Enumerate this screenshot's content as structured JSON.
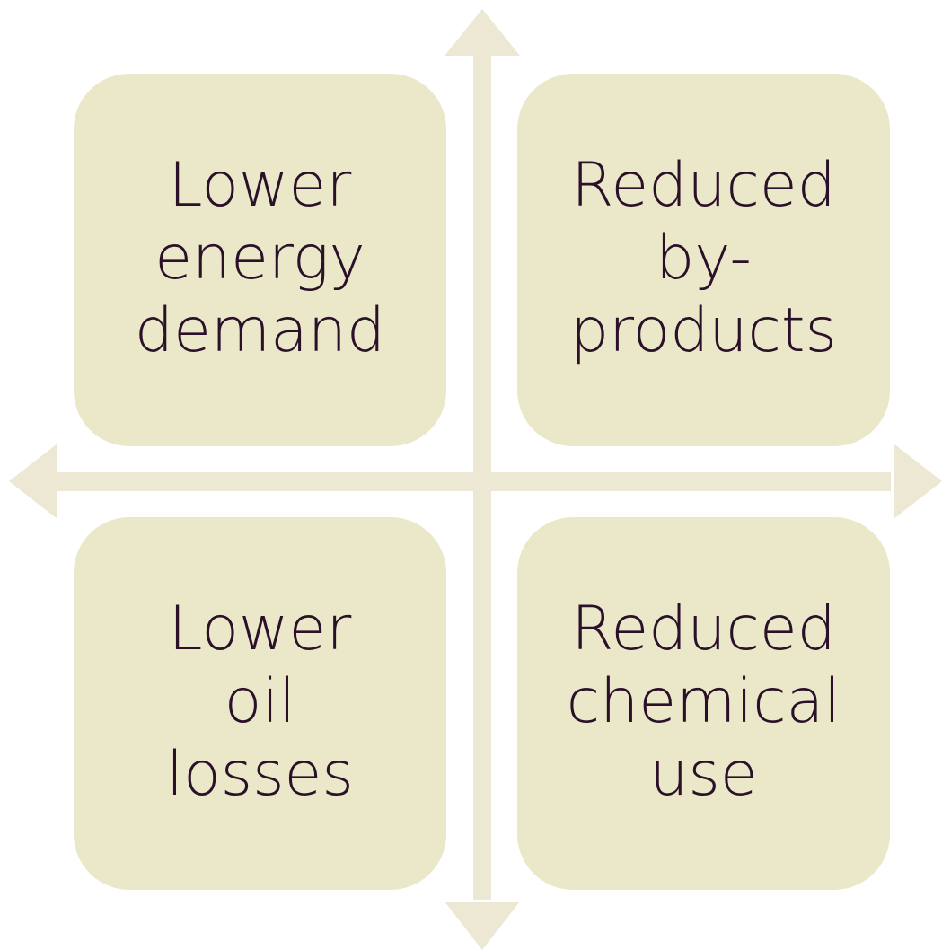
{
  "nodes": [
    {
      "label": [
        "Lower",
        "energy",
        "demand"
      ]
    },
    {
      "label": [
        "Reduced",
        "by-",
        "products"
      ]
    },
    {
      "label": [
        "Lower",
        "oil",
        "losses"
      ]
    },
    {
      "label": [
        "Reduced",
        "chemical",
        "use"
      ]
    }
  ]
}
